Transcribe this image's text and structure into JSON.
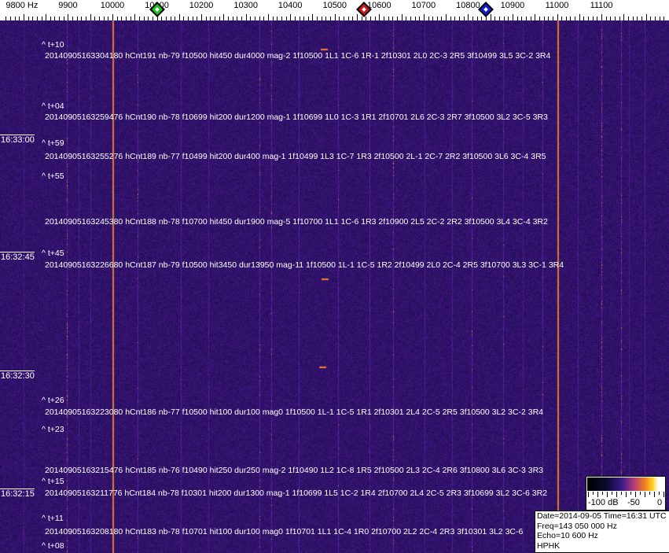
{
  "axis": {
    "labels": [
      "9800 Hz",
      "9900",
      "10000",
      "10100",
      "10200",
      "10300",
      "10400",
      "10500",
      "10600",
      "10700",
      "10800",
      "10900",
      "11000",
      "11100"
    ],
    "markers": [
      {
        "name": "green",
        "freq_hz": 10100,
        "color": "#22c022"
      },
      {
        "name": "red",
        "freq_hz": 10565,
        "color": "#d01818"
      },
      {
        "name": "blue",
        "freq_hz": 10840,
        "color": "#1020d0"
      }
    ]
  },
  "colors": {
    "background": "#231a72",
    "strong_line": "#e07a30"
  },
  "time_labels": [
    "16:33:00",
    "16:32:45",
    "16:32:30",
    "16:32:15"
  ],
  "offsets": [
    "^ t+10",
    "^ t+04",
    "^ t+59",
    "^ t+55",
    "^ t+45",
    "^ t+26",
    "^ t+23",
    "^ t+15",
    "^ t+11",
    "^ t+08"
  ],
  "detections": [
    "20140905163304180 hCnt191 nb-79 f10500 hit450 dur4000 mag-2 1f10500 1L1 1C-6 1R-1 2f10301 2L0 2C-3 2R5 3f10499 3L5 3C-2 3R4",
    "20140905163259476 hCnt190 nb-78 f10699 hit200 dur1200 mag-1 1f10699 1L0 1C-3 1R1 2f10701 2L6 2C-3 2R7 3f10500 3L2 3C-5 3R3",
    "20140905163255276 hCnt189 nb-77 f10499 hit200 dur400 mag-1 1f10499 1L3 1C-7 1R3 2f10500 2L-1 2C-7 2R2 3f10500 3L6 3C-4 3R5",
    "20140905163245380 hCnt188 nb-78 f10700 hit450 dur1900 mag-5 1f10700 1L1 1C-6 1R3 2f10900 2L5 2C-2 2R2 3f10500 3L4 3C-4 3R2",
    "20140905163226680 hCnt187 nb-79 f10500 hit3450 dur13950 mag-11 1f10500 1L-1 1C-5 1R2 2f10499 2L0 2C-4 2R5 3f10700 3L3 3C-1 3R4",
    "20140905163223080 hCnt186 nb-77 f10500 hit100 dur100 mag0 1f10500 1L-1 1C-5 1R1 2f10301 2L4 2C-5 2R5 3f10500 3L2 3C-2 3R4",
    "20140905163215476 hCnt185 nb-76 f10490 hit250 dur250 mag-2 1f10490 1L2 1C-8 1R5 2f10500 2L3 2C-4 2R6 3f10800 3L6 3C-3 3R3",
    "20140905163211776 hCnt184 nb-78 f10301 hit200 dur1300 mag-1 1f10699 1L5 1C-2 1R4 2f10700 2L4 2C-5 2R3 3f10699 3L2 3C-6 3R2",
    "20140905163208180 hCnt183 nb-78 f10701 hit100 dur100 mag0 1f10701 1L1 1C-4 1R0 2f10700 2L2 2C-4 2R3 3f10301 3L2 3C-6"
  ],
  "scale": {
    "labels": [
      "-100 dB",
      "-50",
      "0"
    ]
  },
  "info": {
    "date_time": "Date=2014-09-05 Time=16:31 UTC",
    "freq": "Freq=143 050 000 Hz",
    "echo": "Echo=10 600 Hz",
    "station": "HPHK"
  }
}
